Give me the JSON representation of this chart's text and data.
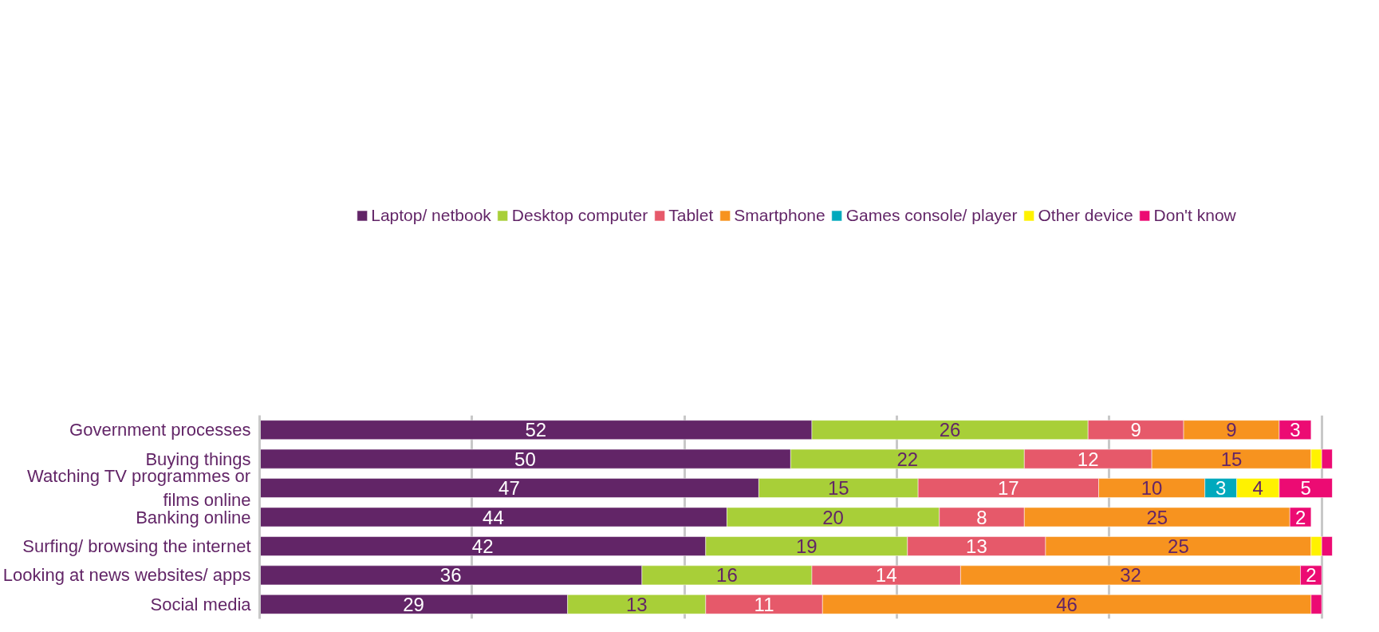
{
  "chart_data": {
    "type": "bar",
    "orientation": "horizontal",
    "stacked": true,
    "categories": [
      "Government processes",
      "Buying things",
      "Watching TV programmes or films online",
      "Banking online",
      "Surfing/ browsing the internet",
      "Looking at news websites/ apps",
      "Social media"
    ],
    "series": [
      {
        "name": "Laptop/ netbook",
        "color": "#622567",
        "values": [
          52,
          50,
          47,
          44,
          42,
          36,
          29
        ],
        "value_labels": [
          "52",
          "50",
          "47",
          "44",
          "42",
          "36",
          "29"
        ]
      },
      {
        "name": "Desktop computer",
        "color": "#a8cf38",
        "values": [
          26,
          22,
          15,
          20,
          19,
          16,
          13
        ],
        "value_labels": [
          "26",
          "22",
          "15",
          "20",
          "19",
          "16",
          "13"
        ]
      },
      {
        "name": "Tablet",
        "color": "#e6596a",
        "values": [
          9,
          12,
          17,
          8,
          13,
          14,
          11
        ],
        "value_labels": [
          "9",
          "12",
          "17",
          "8",
          "13",
          "14",
          "11"
        ]
      },
      {
        "name": "Smartphone",
        "color": "#f7931f",
        "values": [
          9,
          15,
          10,
          25,
          25,
          32,
          46
        ],
        "value_labels": [
          "9",
          "15",
          "10",
          "25",
          "25",
          "32",
          "46"
        ]
      },
      {
        "name": "Games console/ player",
        "color": "#00a9bd",
        "values": [
          null,
          null,
          3,
          null,
          null,
          null,
          null
        ],
        "value_labels": [
          null,
          null,
          "3",
          null,
          null,
          null,
          null
        ]
      },
      {
        "name": "Other device",
        "color": "#fff200",
        "values": [
          null,
          1,
          4,
          null,
          1,
          null,
          null
        ],
        "value_labels": [
          null,
          null,
          "4",
          null,
          null,
          null,
          null
        ]
      },
      {
        "name": "Don't know",
        "color": "#ec0b73",
        "values": [
          3,
          1,
          5,
          2,
          1,
          2,
          1
        ],
        "value_labels": [
          "3",
          null,
          "5",
          "2",
          null,
          "2",
          null
        ]
      }
    ],
    "xlim": [
      0,
      101
    ],
    "xticks": [
      {
        "value": 0,
        "label": null
      },
      {
        "value": 20,
        "label": null
      },
      {
        "value": 40,
        "label": null
      },
      {
        "value": 60,
        "label": null
      },
      {
        "value": 80,
        "label": null
      },
      {
        "value": 100,
        "label": null
      }
    ],
    "tick_labels": "y",
    "grid": "x",
    "legend": "top"
  }
}
